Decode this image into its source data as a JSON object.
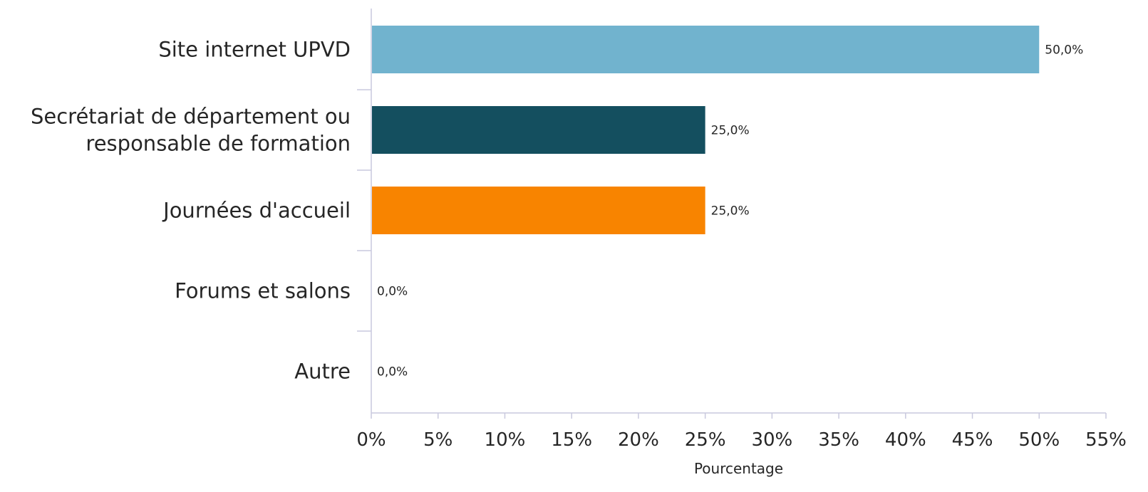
{
  "chart_data": {
    "type": "bar",
    "orientation": "horizontal",
    "categories": [
      "Site internet UPVD",
      "Secrétariat de département ou\nresponsable de formation",
      "Journées d'accueil",
      "Forums et salons",
      "Autre"
    ],
    "values": [
      50.0,
      25.0,
      25.0,
      0.0,
      0.0
    ],
    "value_labels": [
      "50,0%",
      "25,0%",
      "25,0%",
      "0,0%",
      "0,0%"
    ],
    "colors": [
      "#71b3ce",
      "#144f5f",
      "#f88400",
      "#71b3ce",
      "#71b3ce"
    ],
    "xlabel": "Pourcentage",
    "ylabel": "",
    "title": "",
    "xlim": [
      0,
      55
    ],
    "xticks": [
      0,
      5,
      10,
      15,
      20,
      25,
      30,
      35,
      40,
      45,
      50,
      55
    ],
    "xtick_labels": [
      "0%",
      "5%",
      "10%",
      "15%",
      "20%",
      "25%",
      "30%",
      "35%",
      "40%",
      "45%",
      "50%",
      "55%"
    ],
    "grid": false,
    "legend": "none"
  }
}
